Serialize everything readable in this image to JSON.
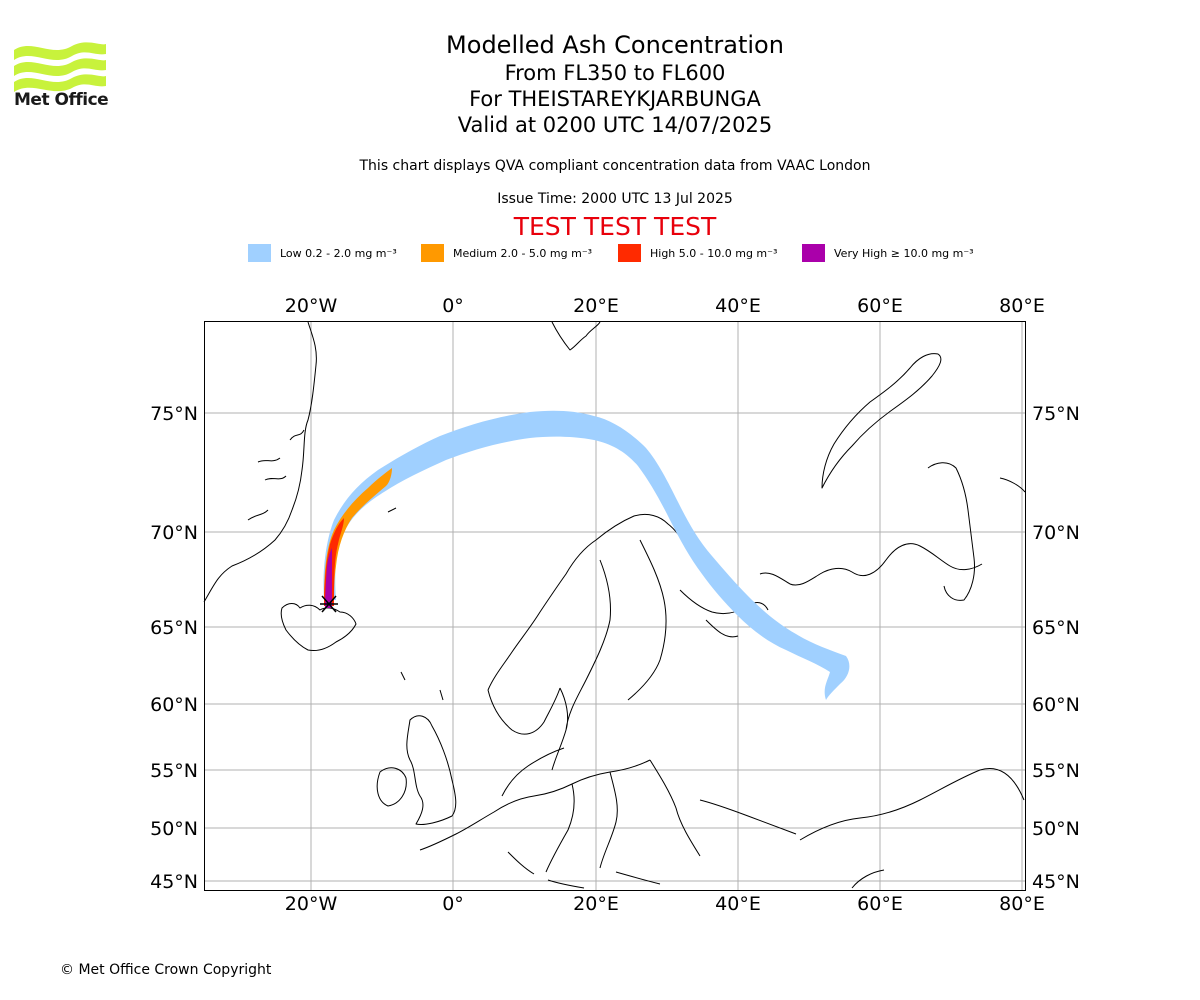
{
  "header": {
    "title": "Modelled Ash Concentration",
    "level_range": "From FL350 to FL600",
    "volcano": "For THEISTAREYKJARBUNGA",
    "valid_time": "Valid at 0200 UTC 14/07/2025",
    "description": "This chart displays QVA compliant concentration data from VAAC London",
    "issue_time": "Issue Time: 2000 UTC 13 Jul 2025",
    "test_banner": "TEST TEST TEST"
  },
  "logo": {
    "text": "Met Office",
    "color": "#c8f23c"
  },
  "legend": [
    {
      "label": "Low 0.2 - 2.0 mg m⁻³",
      "color": "#a0d0ff"
    },
    {
      "label": "Medium 2.0 - 5.0 mg m⁻³",
      "color": "#ff9900"
    },
    {
      "label": "High 5.0 - 10.0 mg m⁻³",
      "color": "#ff2a00"
    },
    {
      "label": "Very High ≥ 10.0 mg m⁻³",
      "color": "#aa00aa"
    }
  ],
  "map": {
    "lon_labels": [
      "20°W",
      "0°",
      "20°E",
      "40°E",
      "60°E",
      "80°E"
    ],
    "lat_labels": [
      "75°N",
      "70°N",
      "65°N",
      "60°N",
      "55°N",
      "50°N",
      "45°N"
    ],
    "grid": true
  },
  "footer": {
    "copyright": "© Met Office Crown Copyright"
  }
}
